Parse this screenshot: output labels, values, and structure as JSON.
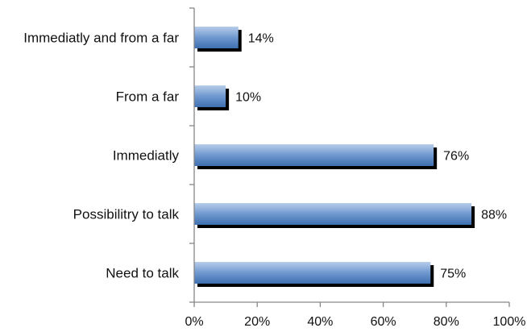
{
  "chart_data": {
    "type": "bar",
    "orientation": "horizontal",
    "categories": [
      "Immediatly and from a far",
      "From a far",
      "Immediatly",
      "Possibilitry to talk",
      "Need to talk"
    ],
    "values": [
      14,
      10,
      76,
      88,
      75
    ],
    "data_labels": [
      "14%",
      "10%",
      "76%",
      "88%",
      "75%"
    ],
    "xlim": [
      0,
      100
    ],
    "x_ticks": [
      0,
      20,
      40,
      60,
      80,
      100
    ],
    "x_tick_labels": [
      "0%",
      "20%",
      "40%",
      "60%",
      "80%",
      "100%"
    ],
    "title": "",
    "xlabel": "",
    "ylabel": "",
    "grid": false,
    "legend": "none",
    "colors": {
      "bar_top": "#b7cdea",
      "bar_mid": "#6f98cf",
      "bar_bottom": "#3e6fb0",
      "bar_shadow": "#000000",
      "axis": "#868686",
      "text": "#111111"
    }
  }
}
